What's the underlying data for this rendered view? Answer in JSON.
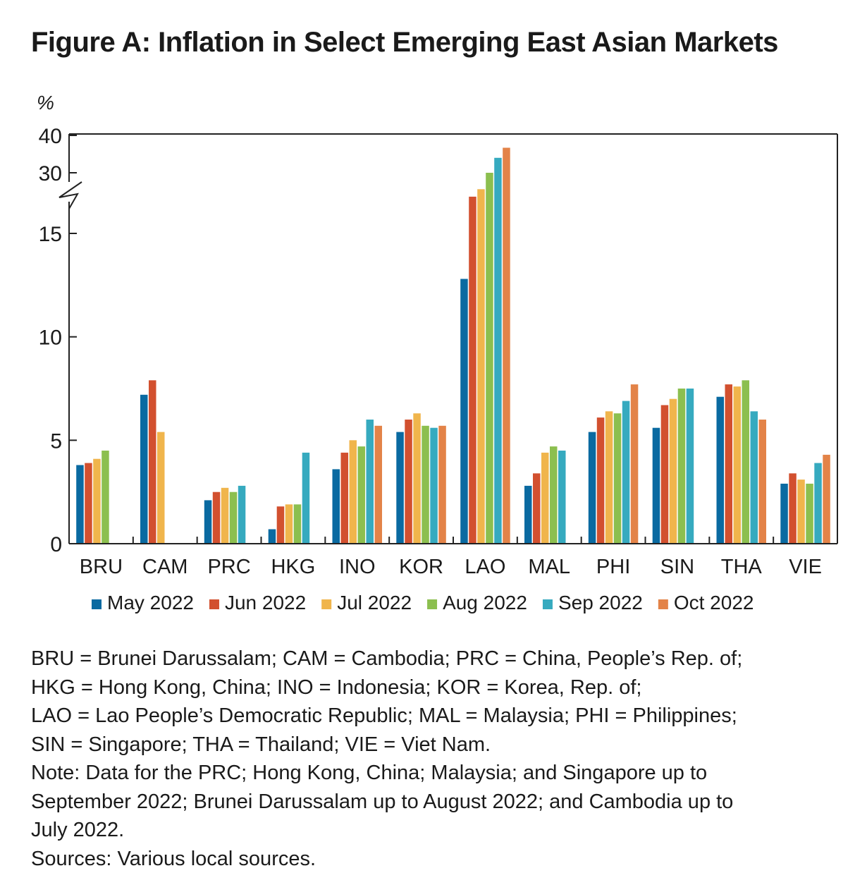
{
  "title": "Figure A: Inflation in Select Emerging East Asian Markets",
  "chart_data": {
    "type": "bar",
    "title": "Figure A: Inflation in Select Emerging East Asian Markets",
    "ylabel": "%",
    "xlabel": "",
    "ylim": [
      0,
      40
    ],
    "axis_break": {
      "lower_max": 15,
      "upper_ticks": [
        30,
        40
      ]
    },
    "yticks": [
      "0",
      "5",
      "10",
      "15",
      "30",
      "40"
    ],
    "legend_position": "bottom",
    "grid": false,
    "categories": [
      "BRU",
      "CAM",
      "PRC",
      "HKG",
      "INO",
      "KOR",
      "LAO",
      "MAL",
      "PHI",
      "SIN",
      "THA",
      "VIE"
    ],
    "series": [
      {
        "name": "May 2022",
        "color": "#0a6aa1",
        "values": [
          3.8,
          7.2,
          2.1,
          0.7,
          3.6,
          5.4,
          12.8,
          2.8,
          5.4,
          5.6,
          7.1,
          2.9
        ]
      },
      {
        "name": "Jun 2022",
        "color": "#d2502f",
        "values": [
          3.9,
          7.9,
          2.5,
          1.8,
          4.4,
          6.0,
          23.6,
          3.4,
          6.1,
          6.7,
          7.7,
          3.4
        ]
      },
      {
        "name": "Jul 2022",
        "color": "#f0b54c",
        "values": [
          4.1,
          5.4,
          2.7,
          1.9,
          5.0,
          6.3,
          25.6,
          4.4,
          6.4,
          7.0,
          7.6,
          3.1
        ]
      },
      {
        "name": "Aug 2022",
        "color": "#8cbf4f",
        "values": [
          4.5,
          null,
          2.5,
          1.9,
          4.7,
          5.7,
          30.0,
          4.7,
          6.3,
          7.5,
          7.9,
          2.9
        ]
      },
      {
        "name": "Sep 2022",
        "color": "#36aabf",
        "values": [
          null,
          null,
          2.8,
          4.4,
          6.0,
          5.6,
          34.0,
          4.5,
          6.9,
          7.5,
          6.4,
          3.9
        ]
      },
      {
        "name": "Oct 2022",
        "color": "#e38348",
        "values": [
          null,
          null,
          null,
          null,
          5.7,
          5.7,
          36.7,
          null,
          7.7,
          null,
          6.0,
          4.3
        ]
      }
    ]
  },
  "notes": [
    "BRU = Brunei Darussalam; CAM = Cambodia; PRC = China, People’s Rep. of;",
    "HKG = Hong Kong, China; INO = Indonesia; KOR = Korea, Rep. of;",
    "LAO = Lao People’s Democratic Republic; MAL = Malaysia; PHI = Philippines;",
    "SIN = Singapore; THA = Thailand; VIE = Viet Nam.",
    "Note: Data for the PRC; Hong Kong, China; Malaysia; and Singapore up to",
    "September 2022; Brunei Darussalam up to August 2022; and Cambodia up to",
    "July 2022.",
    "Sources: Various local sources."
  ]
}
